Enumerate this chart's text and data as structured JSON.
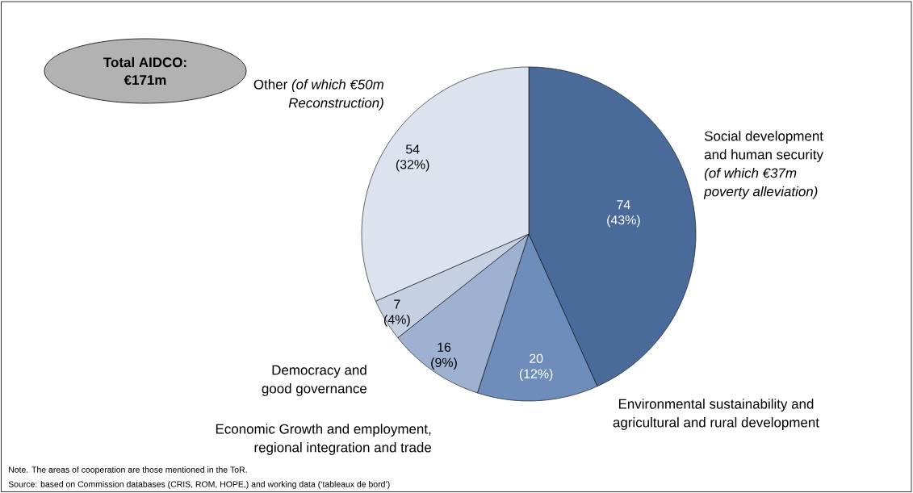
{
  "chart_data": {
    "type": "pie",
    "title": "Total AIDCO: €171m",
    "categories": [
      "Social development and human security *(of which €37m poverty alleviation)*",
      "Environmental sustainability and agricultural and rural development",
      "Economic Growth and employment, regional integration and trade",
      "Democracy and good governance",
      "Other *(of which €50m Reconstruction)*"
    ],
    "values": [
      74,
      20,
      16,
      7,
      54
    ],
    "value_labels": [
      "74 (43%)",
      "20 (12%)",
      "16 (9%)",
      "7 (4%)",
      "54 (32%)"
    ],
    "colors": [
      "#4a6a9a",
      "#6f8dbb",
      "#9fb1d0",
      "#c5d0e3",
      "#dde3ee"
    ],
    "annotations": [
      "Note. The areas of cooperation are those mentioned in the ToR.",
      "Source: based on Commission databases (CRIS, ROM, HOPE,) and working data (‘tableaux de bord’)"
    ]
  }
}
